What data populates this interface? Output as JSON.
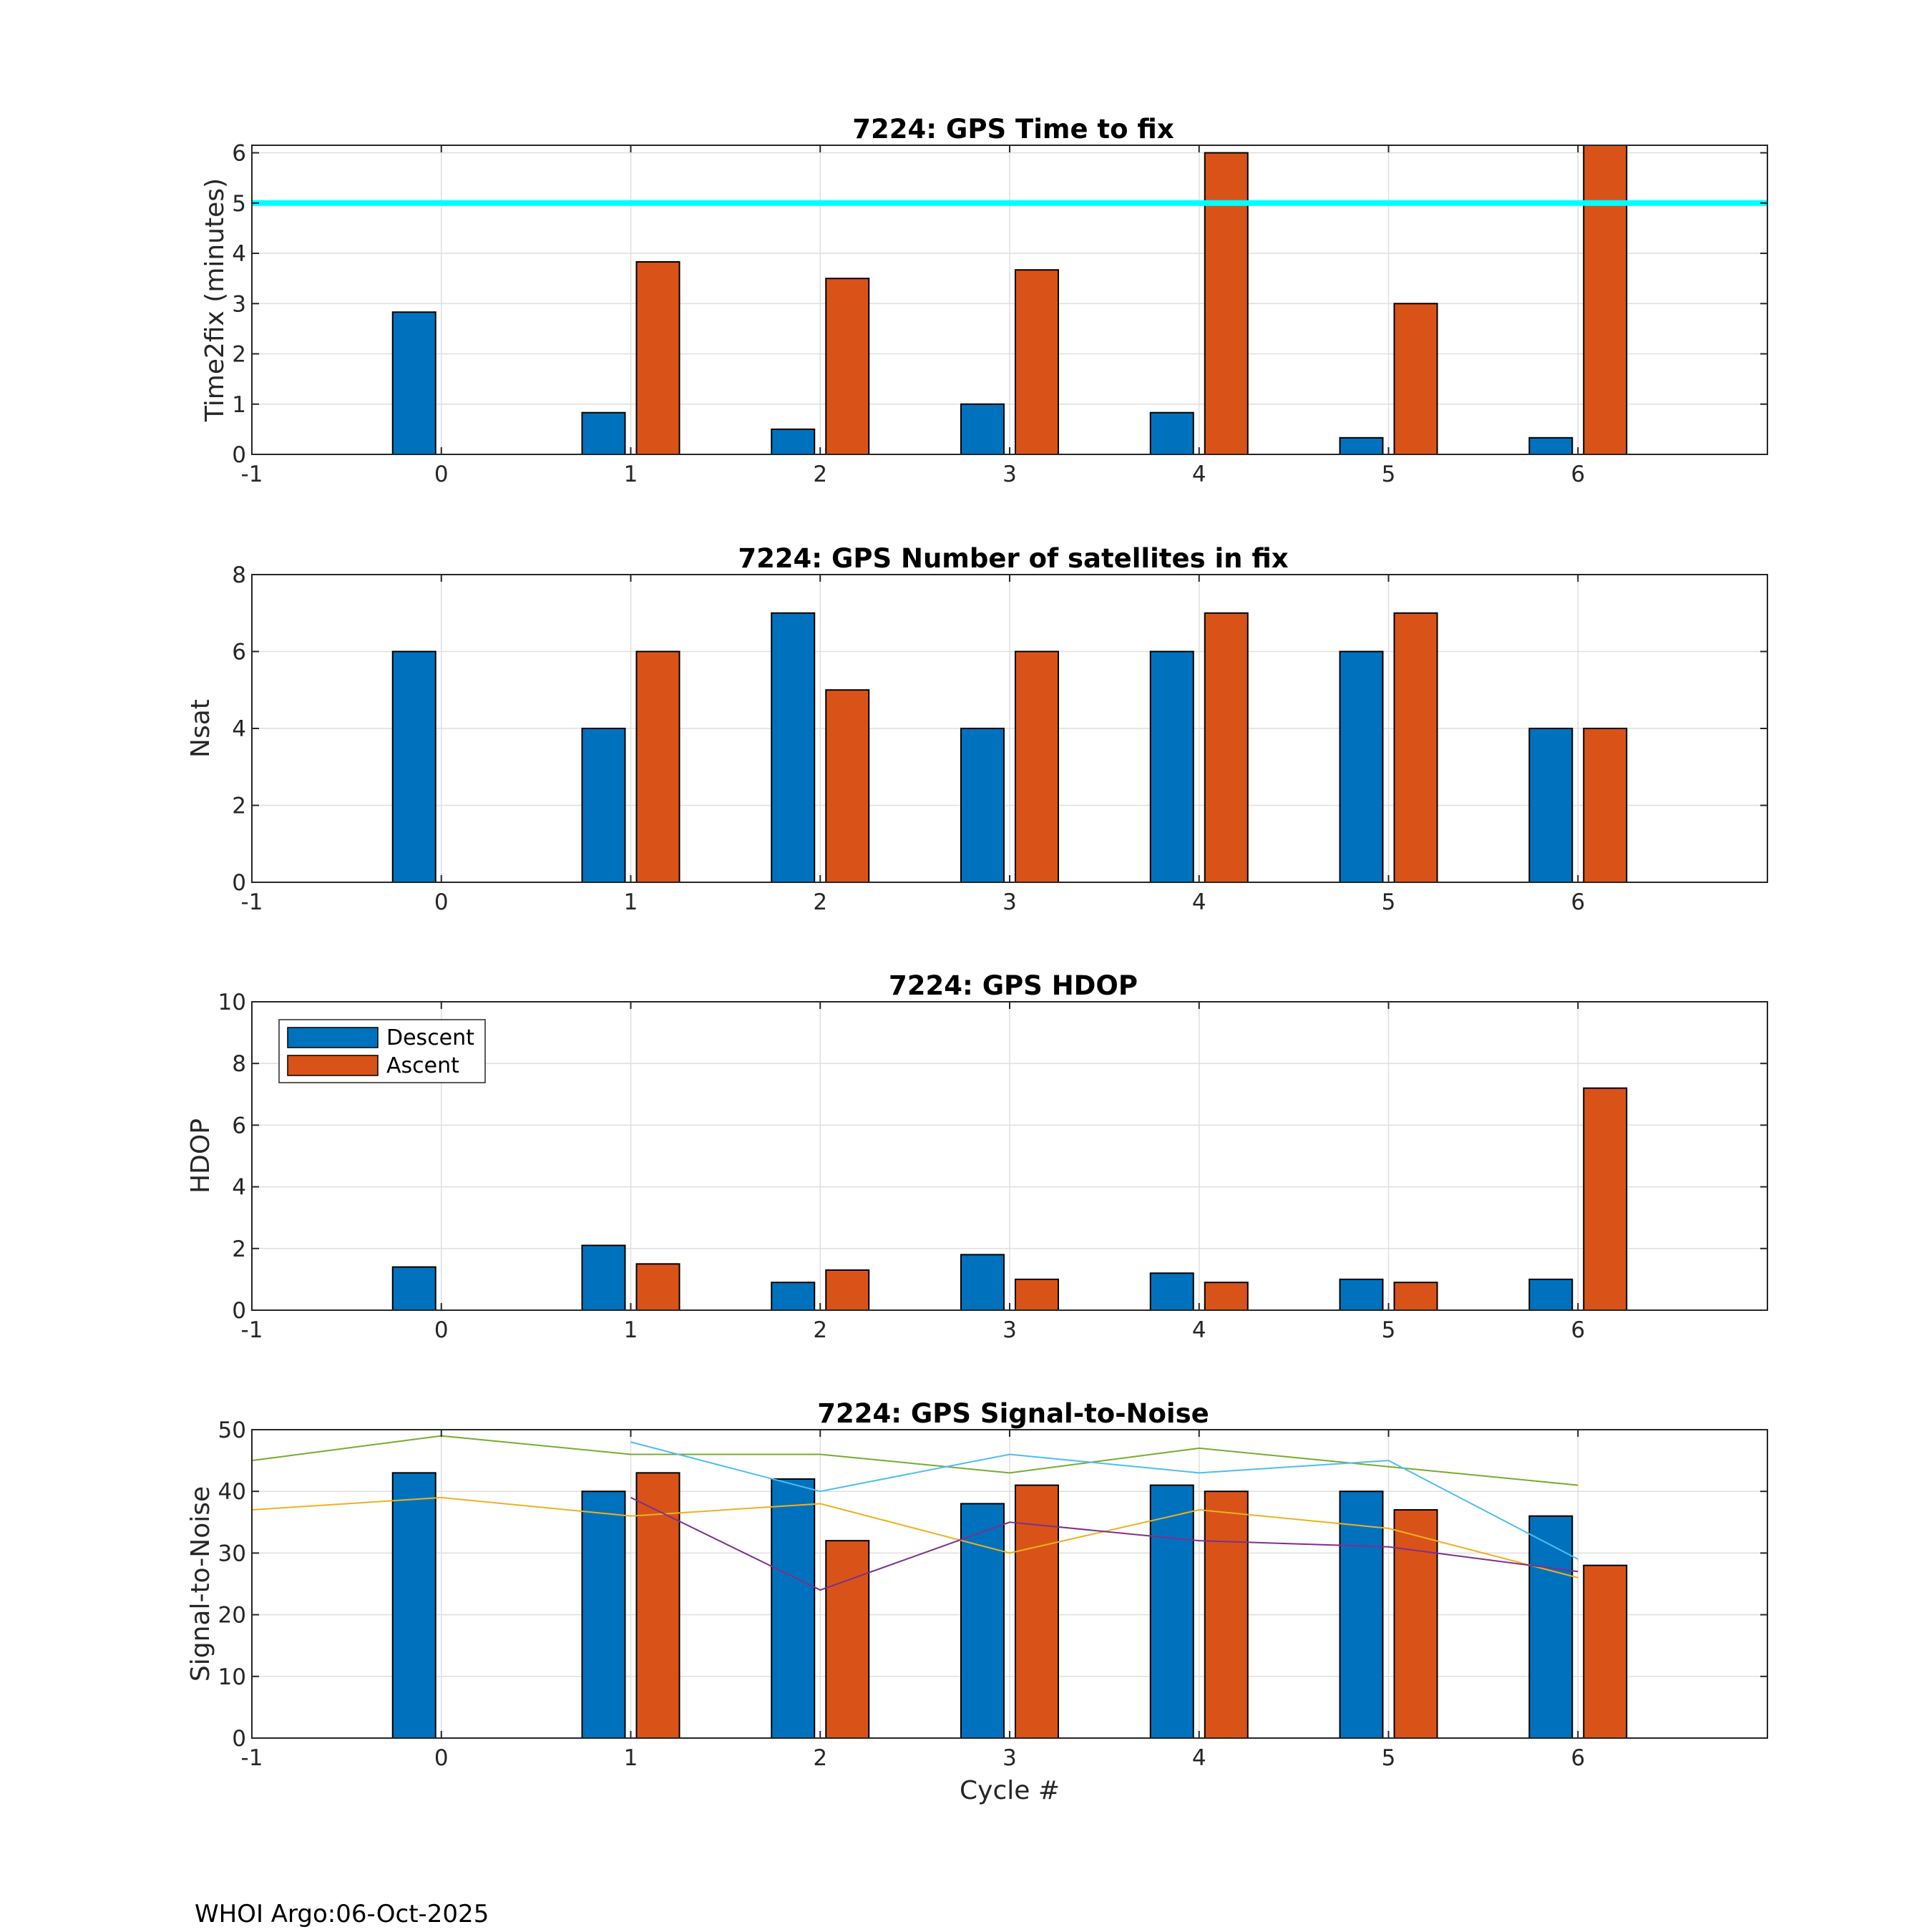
{
  "chart_data": [
    {
      "type": "bar",
      "title": "7224: GPS Time to fix",
      "xlabel": "",
      "ylabel": "Time2fix (minutes)",
      "xlim": [
        -1,
        7
      ],
      "ylim": [
        0,
        6.15
      ],
      "xticks": [
        -1,
        0,
        1,
        2,
        3,
        4,
        5,
        6
      ],
      "yticks": [
        0,
        1,
        2,
        3,
        4,
        5,
        6
      ],
      "grid": true,
      "categories": [
        0,
        1,
        2,
        3,
        4,
        5,
        6
      ],
      "series": [
        {
          "name": "Descent",
          "color": "#0072BD",
          "values": [
            2.83,
            0.83,
            0.5,
            1.0,
            0.83,
            0.33,
            0.33
          ]
        },
        {
          "name": "Ascent",
          "color": "#D95319",
          "values": [
            null,
            3.83,
            3.5,
            3.67,
            6.0,
            3.0,
            6.2
          ]
        }
      ],
      "reference_line": {
        "y": 5,
        "color": "#00FFFF"
      }
    },
    {
      "type": "bar",
      "title": "7224: GPS Number of satellites in fix",
      "xlabel": "",
      "ylabel": "Nsat",
      "xlim": [
        -1,
        7
      ],
      "ylim": [
        0,
        8
      ],
      "xticks": [
        -1,
        0,
        1,
        2,
        3,
        4,
        5,
        6
      ],
      "yticks": [
        0,
        2,
        4,
        6,
        8
      ],
      "grid": true,
      "categories": [
        0,
        1,
        2,
        3,
        4,
        5,
        6
      ],
      "series": [
        {
          "name": "Descent",
          "color": "#0072BD",
          "values": [
            6,
            4,
            7,
            4,
            6,
            6,
            4
          ]
        },
        {
          "name": "Ascent",
          "color": "#D95319",
          "values": [
            null,
            6,
            5,
            6,
            7,
            7,
            4
          ]
        }
      ]
    },
    {
      "type": "bar",
      "title": "7224: GPS HDOP",
      "xlabel": "",
      "ylabel": "HDOP",
      "xlim": [
        -1,
        7
      ],
      "ylim": [
        0,
        10
      ],
      "xticks": [
        -1,
        0,
        1,
        2,
        3,
        4,
        5,
        6
      ],
      "yticks": [
        0,
        2,
        4,
        6,
        8,
        10
      ],
      "grid": true,
      "legend": {
        "position": "top-left",
        "entries": [
          "Descent",
          "Ascent"
        ]
      },
      "categories": [
        0,
        1,
        2,
        3,
        4,
        5,
        6
      ],
      "series": [
        {
          "name": "Descent",
          "color": "#0072BD",
          "values": [
            1.4,
            2.1,
            0.9,
            1.8,
            1.2,
            1.0,
            1.0
          ]
        },
        {
          "name": "Ascent",
          "color": "#D95319",
          "values": [
            null,
            1.5,
            1.3,
            1.0,
            0.9,
            0.9,
            7.2
          ]
        }
      ]
    },
    {
      "type": "bar",
      "title": "7224: GPS Signal-to-Noise",
      "xlabel": "Cycle #",
      "ylabel": "Signal-to-Noise",
      "xlim": [
        -1,
        7
      ],
      "ylim": [
        0,
        50
      ],
      "xticks": [
        -1,
        0,
        1,
        2,
        3,
        4,
        5,
        6
      ],
      "yticks": [
        0,
        10,
        20,
        30,
        40,
        50
      ],
      "grid": true,
      "categories": [
        0,
        1,
        2,
        3,
        4,
        5,
        6
      ],
      "series": [
        {
          "name": "Descent",
          "color": "#0072BD",
          "values": [
            43,
            40,
            42,
            38,
            41,
            40,
            36
          ]
        },
        {
          "name": "Ascent",
          "color": "#D95319",
          "values": [
            null,
            43,
            32,
            41,
            40,
            37,
            28
          ]
        }
      ],
      "lines": [
        {
          "color": "#77AC30",
          "x": [
            -1,
            0,
            1,
            2,
            3,
            4,
            5,
            6
          ],
          "y": [
            45,
            49,
            46,
            46,
            43,
            47,
            44,
            41
          ]
        },
        {
          "color": "#4DBEEE",
          "x": [
            1,
            2,
            3,
            4,
            5,
            6
          ],
          "y": [
            48,
            40,
            46,
            43,
            45,
            29
          ]
        },
        {
          "color": "#EDB120",
          "x": [
            -1,
            0,
            1,
            2,
            3,
            4,
            5,
            6
          ],
          "y": [
            37,
            39,
            36,
            38,
            30,
            37,
            34,
            26
          ]
        },
        {
          "color": "#7E2F8E",
          "x": [
            1,
            2,
            3,
            4,
            5,
            6
          ],
          "y": [
            39,
            24,
            35,
            32,
            31,
            27
          ]
        }
      ]
    }
  ],
  "footer": "WHOI Argo:06-Oct-2025"
}
